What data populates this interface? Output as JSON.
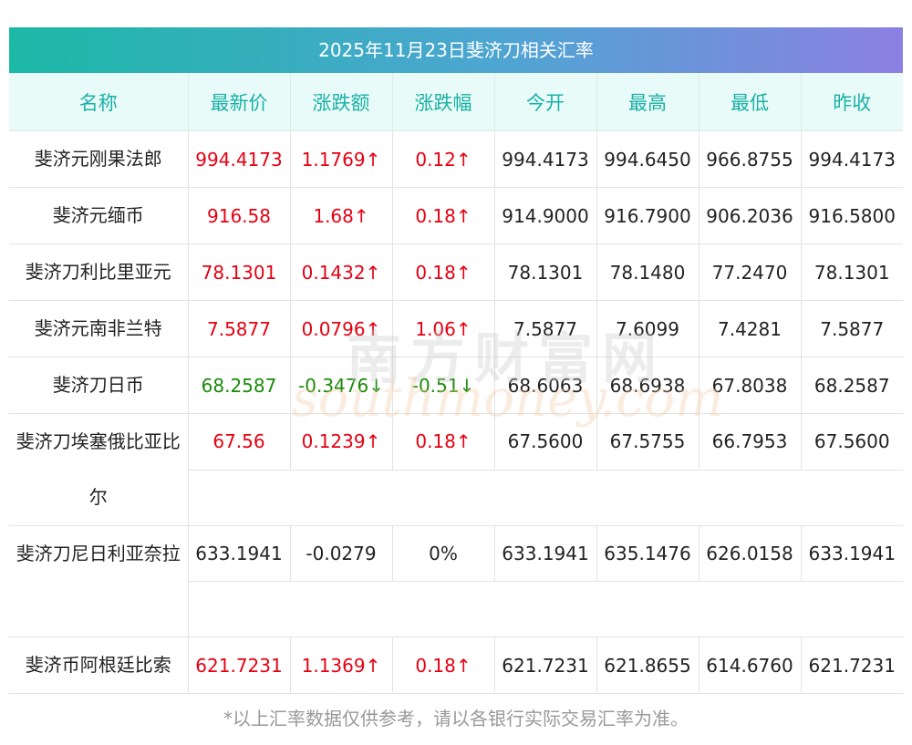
{
  "title": "2025年11月23日斐济刀相关汇率",
  "headers": [
    "名称",
    "最新价",
    "涨跌额",
    "涨跌幅",
    "今开",
    "最高",
    "最低",
    "昨收"
  ],
  "rows": [
    {
      "name": "斐济元刚果法郎",
      "latest": "994.4173",
      "change": "1.1769↑",
      "pct": "0.12↑",
      "open": "994.4173",
      "high": "994.6450",
      "low": "966.8755",
      "prev": "994.4173",
      "trend": "up"
    },
    {
      "name": "斐济元缅币",
      "latest": "916.58",
      "change": "1.68↑",
      "pct": "0.18↑",
      "open": "914.9000",
      "high": "916.7900",
      "low": "906.2036",
      "prev": "916.5800",
      "trend": "up"
    },
    {
      "name": "斐济刀利比里亚元",
      "latest": "78.1301",
      "change": "0.1432↑",
      "pct": "0.18↑",
      "open": "78.1301",
      "high": "78.1480",
      "low": "77.2470",
      "prev": "78.1301",
      "trend": "up"
    },
    {
      "name": "斐济元南非兰特",
      "latest": "7.5877",
      "change": "0.0796↑",
      "pct": "1.06↑",
      "open": "7.5877",
      "high": "7.6099",
      "low": "7.4281",
      "prev": "7.5877",
      "trend": "up"
    },
    {
      "name": "斐济刀日币",
      "latest": "68.2587",
      "change": "-0.3476↓",
      "pct": "-0.51↓",
      "open": "68.6063",
      "high": "68.6938",
      "low": "67.8038",
      "prev": "68.2587",
      "trend": "down"
    },
    {
      "name": "斐济刀埃塞俄比亚比尔",
      "latest": "67.56",
      "change": "0.1239↑",
      "pct": "0.18↑",
      "open": "67.5600",
      "high": "67.5755",
      "low": "66.7953",
      "prev": "67.5600",
      "trend": "up"
    },
    {
      "name": "斐济刀尼日利亚奈拉",
      "latest": "633.1941",
      "change": "-0.0279",
      "pct": "0%",
      "open": "633.1941",
      "high": "635.1476",
      "low": "626.0158",
      "prev": "633.1941",
      "trend": "flat"
    },
    {
      "name": "斐济币阿根廷比索",
      "latest": "621.7231",
      "change": "1.1369↑",
      "pct": "0.18↑",
      "open": "621.7231",
      "high": "621.8655",
      "low": "614.6760",
      "prev": "621.7231",
      "trend": "up"
    }
  ],
  "watermark": {
    "cn": "南方财富网",
    "en": "southmoney.com"
  },
  "footnote": "*以上汇率数据仅供参考，请以各银行实际交易汇率为准。",
  "colors": {
    "up": "#e60012",
    "down": "#1a8a0a",
    "header_text": "#1ab0a6",
    "gradient_start": "#1cb8a6",
    "gradient_end": "#8c80e2"
  }
}
